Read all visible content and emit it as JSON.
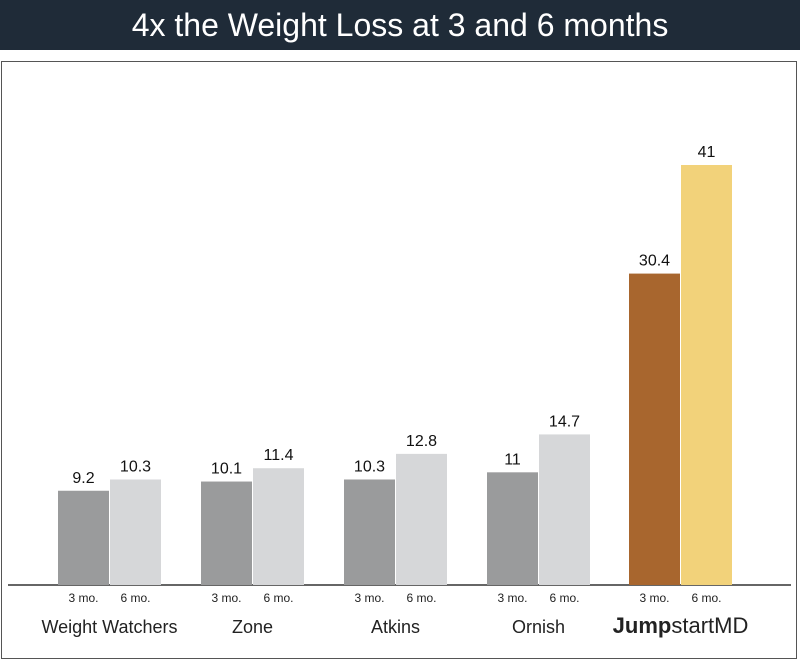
{
  "title": "4x the Weight Loss at 3 and 6 months",
  "chart_data": {
    "type": "bar",
    "title": "4x the Weight Loss at 3 and 6 months",
    "xlabel": "",
    "ylabel": "",
    "ylim": [
      0,
      41
    ],
    "grid": false,
    "categories": [
      "Weight Watchers",
      "Zone",
      "Atkins",
      "Ornish",
      "JumpstartMD"
    ],
    "brand_category": {
      "bold": "Jump",
      "light": "startMD"
    },
    "series": [
      {
        "name": "3 mo.",
        "values": [
          9.2,
          10.1,
          10.3,
          11,
          30.4
        ]
      },
      {
        "name": "6 mo.",
        "values": [
          10.3,
          11.4,
          12.8,
          14.7,
          41
        ]
      }
    ],
    "value_labels": [
      [
        "9.2",
        "10.3"
      ],
      [
        "10.1",
        "11.4"
      ],
      [
        "10.3",
        "12.8"
      ],
      [
        "11",
        "14.7"
      ],
      [
        "30.4",
        "41"
      ]
    ],
    "colors": {
      "series_3mo": "#9a9b9c",
      "series_6mo": "#d6d7d9",
      "highlight_3mo": "#a8662e",
      "highlight_6mo": "#f2d27a",
      "title_bar": "#1f2b38"
    }
  }
}
